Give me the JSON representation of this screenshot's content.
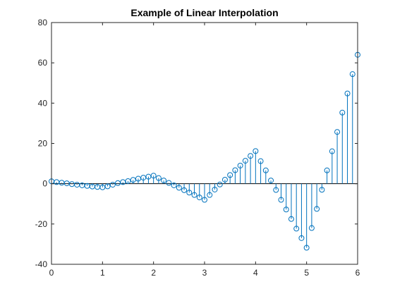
{
  "chart_data": {
    "type": "stem",
    "title": "Example of Linear Interpolation",
    "xlabel": "",
    "ylabel": "",
    "xlim": [
      0,
      6
    ],
    "ylim": [
      -40,
      80
    ],
    "xticks": [
      "0",
      "1",
      "2",
      "3",
      "4",
      "5",
      "6"
    ],
    "yticks": [
      "-40",
      "-20",
      "0",
      "20",
      "40",
      "60",
      "80"
    ],
    "grid": false,
    "legend": "none",
    "color": "#0072BD",
    "x": [
      0.0,
      0.1,
      0.2,
      0.3,
      0.4,
      0.5,
      0.6,
      0.7,
      0.8,
      0.9,
      1.0,
      1.1,
      1.2,
      1.3,
      1.4,
      1.5,
      1.6,
      1.7,
      1.8,
      1.9,
      2.0,
      2.1,
      2.2,
      2.3,
      2.4,
      2.5,
      2.6,
      2.7,
      2.8,
      2.9,
      3.0,
      3.1,
      3.2,
      3.3,
      3.4,
      3.5,
      3.6,
      3.7,
      3.8,
      3.9,
      4.0,
      4.1,
      4.2,
      4.3,
      4.4,
      4.5,
      4.6,
      4.7,
      4.8,
      4.9,
      5.0,
      5.1,
      5.2,
      5.3,
      5.4,
      5.5,
      5.6,
      5.7,
      5.8,
      5.9,
      6.0
    ],
    "y": [
      1.2,
      0.8,
      0.5,
      0.2,
      -0.2,
      -0.5,
      -0.8,
      -1.1,
      -1.4,
      -1.6,
      -1.8,
      -1.3,
      -0.5,
      0.3,
      0.8,
      1.3,
      1.9,
      2.5,
      3.0,
      3.5,
      4.0,
      2.8,
      1.6,
      0.4,
      -0.8,
      -2.0,
      -3.2,
      -4.4,
      -5.6,
      -6.8,
      -8.0,
      -5.6,
      -2.9,
      -0.4,
      2.0,
      4.3,
      6.7,
      9.0,
      11.4,
      13.8,
      16.2,
      11.2,
      6.6,
      1.6,
      -3.1,
      -8.0,
      -12.8,
      -17.5,
      -22.3,
      -27.0,
      -31.8,
      -22.0,
      -12.5,
      -3.0,
      6.6,
      16.1,
      25.7,
      35.3,
      44.8,
      54.4,
      64.0
    ]
  }
}
